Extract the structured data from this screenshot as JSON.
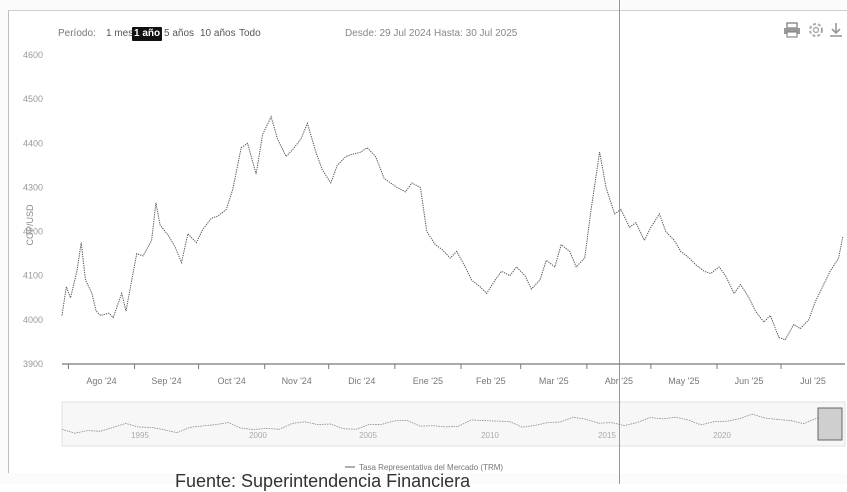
{
  "toolbar": {
    "range_label": "Período:",
    "ranges": [
      "1 mes",
      "1 año",
      "5 años",
      "10 años",
      "Todo"
    ],
    "active_range": "1 año",
    "date_range": "Desde: 29 Jul 2024  Hasta: 30 Jul 2025"
  },
  "icons": [
    "print-icon",
    "settings-icon",
    "download-icon"
  ],
  "legend_label": "Tasa Representativa del Mercado (TRM)",
  "caption": "Fuente: Superintendencia Financiera",
  "chart_data": {
    "type": "line",
    "title": "",
    "ylabel": "COP/USD",
    "ylim": [
      3900,
      4600
    ],
    "yticks": [
      3900,
      4000,
      4100,
      4200,
      4300,
      4400,
      4500,
      4600
    ],
    "xticks": [
      "Ago '24",
      "Sep '24",
      "Oct '24",
      "Nov '24",
      "Dic '24",
      "Ene '25",
      "Feb '25",
      "Mar '25",
      "Abr '25",
      "May '25",
      "Jun '25",
      "Jul '25"
    ],
    "navigator_labels": [
      "1995",
      "2000",
      "2005",
      "2010",
      "2015",
      "2020"
    ],
    "series": [
      {
        "name": "Tasa Representativa del Mercado (TRM)",
        "color": "#555555",
        "points": [
          [
            "2024-07-29",
            4010
          ],
          [
            "2024-07-31",
            4075
          ],
          [
            "2024-08-02",
            4050
          ],
          [
            "2024-08-05",
            4110
          ],
          [
            "2024-08-07",
            4175
          ],
          [
            "2024-08-09",
            4090
          ],
          [
            "2024-08-12",
            4060
          ],
          [
            "2024-08-14",
            4020
          ],
          [
            "2024-08-16",
            4010
          ],
          [
            "2024-08-20",
            4015
          ],
          [
            "2024-08-22",
            4005
          ],
          [
            "2024-08-26",
            4060
          ],
          [
            "2024-08-28",
            4020
          ],
          [
            "2024-09-02",
            4150
          ],
          [
            "2024-09-05",
            4145
          ],
          [
            "2024-09-09",
            4180
          ],
          [
            "2024-09-11",
            4265
          ],
          [
            "2024-09-13",
            4215
          ],
          [
            "2024-09-17",
            4190
          ],
          [
            "2024-09-20",
            4165
          ],
          [
            "2024-09-23",
            4130
          ],
          [
            "2024-09-26",
            4195
          ],
          [
            "2024-09-30",
            4175
          ],
          [
            "2024-10-03",
            4205
          ],
          [
            "2024-10-07",
            4230
          ],
          [
            "2024-10-10",
            4235
          ],
          [
            "2024-10-14",
            4250
          ],
          [
            "2024-10-17",
            4295
          ],
          [
            "2024-10-21",
            4390
          ],
          [
            "2024-10-24",
            4400
          ],
          [
            "2024-10-28",
            4330
          ],
          [
            "2024-10-31",
            4420
          ],
          [
            "2024-11-04",
            4460
          ],
          [
            "2024-11-07",
            4410
          ],
          [
            "2024-11-11",
            4370
          ],
          [
            "2024-11-14",
            4385
          ],
          [
            "2024-11-18",
            4410
          ],
          [
            "2024-11-21",
            4445
          ],
          [
            "2024-11-25",
            4380
          ],
          [
            "2024-11-28",
            4340
          ],
          [
            "2024-12-02",
            4310
          ],
          [
            "2024-12-05",
            4350
          ],
          [
            "2024-12-09",
            4370
          ],
          [
            "2024-12-12",
            4375
          ],
          [
            "2024-12-16",
            4380
          ],
          [
            "2024-12-19",
            4390
          ],
          [
            "2024-12-23",
            4370
          ],
          [
            "2024-12-27",
            4320
          ],
          [
            "2025-01-02",
            4300
          ],
          [
            "2025-01-06",
            4290
          ],
          [
            "2025-01-09",
            4310
          ],
          [
            "2025-01-13",
            4300
          ],
          [
            "2025-01-16",
            4200
          ],
          [
            "2025-01-20",
            4170
          ],
          [
            "2025-01-23",
            4160
          ],
          [
            "2025-01-27",
            4140
          ],
          [
            "2025-01-30",
            4155
          ],
          [
            "2025-02-03",
            4120
          ],
          [
            "2025-02-06",
            4090
          ],
          [
            "2025-02-10",
            4075
          ],
          [
            "2025-02-13",
            4060
          ],
          [
            "2025-02-17",
            4090
          ],
          [
            "2025-02-20",
            4110
          ],
          [
            "2025-02-24",
            4100
          ],
          [
            "2025-02-27",
            4120
          ],
          [
            "2025-03-03",
            4100
          ],
          [
            "2025-03-06",
            4070
          ],
          [
            "2025-03-10",
            4090
          ],
          [
            "2025-03-13",
            4135
          ],
          [
            "2025-03-17",
            4120
          ],
          [
            "2025-03-20",
            4170
          ],
          [
            "2025-03-24",
            4155
          ],
          [
            "2025-03-27",
            4120
          ],
          [
            "2025-03-31",
            4140
          ],
          [
            "2025-04-03",
            4250
          ],
          [
            "2025-04-07",
            4380
          ],
          [
            "2025-04-10",
            4300
          ],
          [
            "2025-04-14",
            4240
          ],
          [
            "2025-04-17",
            4250
          ],
          [
            "2025-04-21",
            4210
          ],
          [
            "2025-04-24",
            4220
          ],
          [
            "2025-04-28",
            4180
          ],
          [
            "2025-05-01",
            4210
          ],
          [
            "2025-05-05",
            4240
          ],
          [
            "2025-05-08",
            4200
          ],
          [
            "2025-05-12",
            4180
          ],
          [
            "2025-05-15",
            4155
          ],
          [
            "2025-05-19",
            4140
          ],
          [
            "2025-05-22",
            4125
          ],
          [
            "2025-05-26",
            4110
          ],
          [
            "2025-05-29",
            4105
          ],
          [
            "2025-06-02",
            4120
          ],
          [
            "2025-06-05",
            4100
          ],
          [
            "2025-06-09",
            4060
          ],
          [
            "2025-06-12",
            4080
          ],
          [
            "2025-06-16",
            4050
          ],
          [
            "2025-06-19",
            4020
          ],
          [
            "2025-06-23",
            3995
          ],
          [
            "2025-06-26",
            4010
          ],
          [
            "2025-06-30",
            3960
          ],
          [
            "2025-07-03",
            3955
          ],
          [
            "2025-07-07",
            3990
          ],
          [
            "2025-07-10",
            3980
          ],
          [
            "2025-07-14",
            4000
          ],
          [
            "2025-07-17",
            4040
          ],
          [
            "2025-07-21",
            4080
          ],
          [
            "2025-07-24",
            4110
          ],
          [
            "2025-07-28",
            4140
          ],
          [
            "2025-07-30",
            4190
          ]
        ]
      }
    ]
  }
}
